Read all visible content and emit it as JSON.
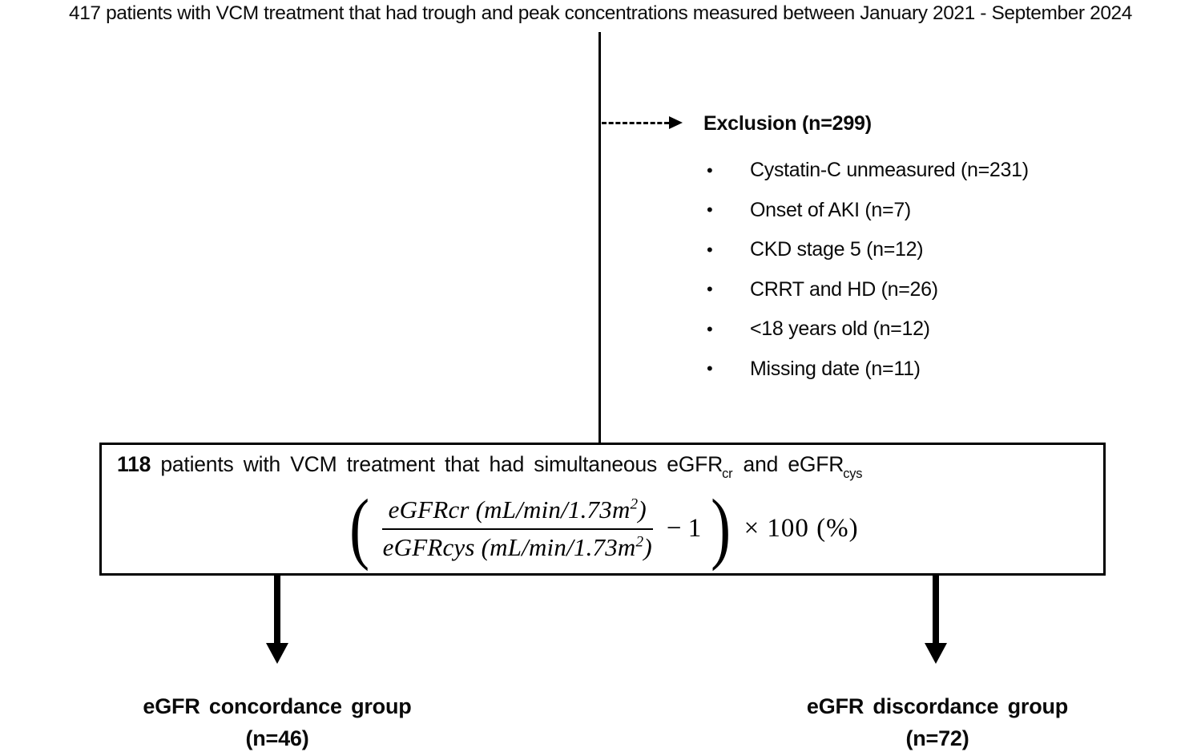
{
  "colors": {
    "ink": "#000000",
    "background": "#ffffff"
  },
  "flowchart": {
    "top_text": "417 patients with VCM treatment that had trough and peak concentrations measured between January 2021 - September 2024",
    "exclusion": {
      "title": "Exclusion (n=299)",
      "bullet_glyph": "•",
      "items": [
        "Cystatin-C unmeasured (n=231)",
        "Onset of AKI (n=7)",
        "CKD stage 5 (n=12)",
        "CRRT and HD (n=26)",
        "<18 years old (n=12)",
        "Missing date (n=11)"
      ]
    },
    "main_box": {
      "count": "118",
      "text": "patients with VCM treatment that had simultaneous",
      "egfr_cr": {
        "base": "eGFR",
        "sub": "cr"
      },
      "and_word": "and",
      "egfr_cys": {
        "base": "eGFR",
        "sub": "cys"
      }
    },
    "formula": {
      "open_paren": "(",
      "numerator": {
        "main": "eGFRcr (mL/min/1.73m",
        "sup": "2",
        "close": ")"
      },
      "denominator": {
        "main": "eGFRcys (mL/min/1.73m",
        "sup": "2",
        "close": ")"
      },
      "minus_term": "− 1",
      "close_paren": ")",
      "multiplier": "× 100 (%)"
    },
    "groups": [
      {
        "name": "eGFR concordance group",
        "n": "(n=46)"
      },
      {
        "name": "eGFR discordance group",
        "n": "(n=72)"
      }
    ]
  }
}
